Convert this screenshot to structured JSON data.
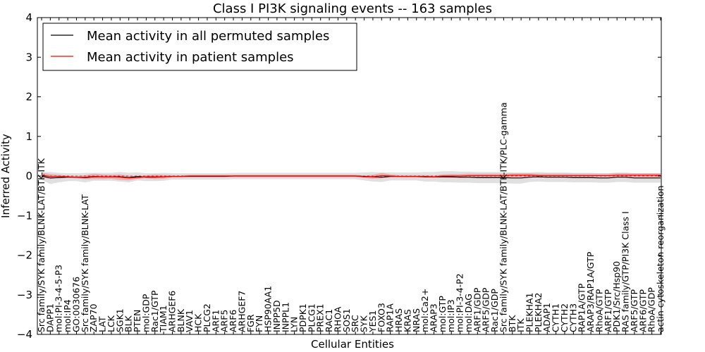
{
  "chart_data": {
    "type": "line",
    "title": "Class I PI3K signaling events -- 163 samples",
    "xlabel": "Cellular Entities",
    "ylabel": "Inferred Activity",
    "ylim": [
      -4,
      4
    ],
    "yticks": [
      "−4",
      "−3",
      "−2",
      "−1",
      "0",
      "1",
      "2",
      "3",
      "4"
    ],
    "grid": false,
    "legend_position": "top-left",
    "categories": [
      "Src family/SYK family/BLNK-LAT/BTK-ITK",
      "DAPP1",
      "mol:PI-3-4-5-P3",
      "mol:IP4",
      "GO:0030676",
      "Src family/SYK family/BLNK-LAT",
      "ZAP70",
      "LAT",
      "LCK",
      "SGK1",
      "BLK",
      "PTEN",
      "mol:GDP",
      "Rac1/GTP",
      "TIAM1",
      "ARHGEF6",
      "BLNK",
      "VAV1",
      "HCK",
      "PLCG2",
      "ARF1",
      "ARF5",
      "ARF6",
      "ARHGEF7",
      "FGR",
      "FYN",
      "HSP90AA1",
      "INPP5D",
      "INPPL1",
      "LYN",
      "PDPK1",
      "PLCG1",
      "PREX1",
      "RAC1",
      "RHOA",
      "SOS1",
      "SRC",
      "SYK",
      "YES1",
      "FOXO3",
      "RAP1A",
      "HRAS",
      "KRAS",
      "NRAS",
      "mol:Ca2+",
      "ARAP3",
      "mol:GTP",
      "mol:IP3",
      "mol:PI-3-4-P2",
      "mol:DAG",
      "ARF1/GDP",
      "ARF5/GDP",
      "Rac1/GDP",
      "Src family/SYK family/BLNK-LAT/BTK-ITK/PLC-gamma",
      "BTK",
      "ITK",
      "PLEKHA1",
      "PLEKHA2",
      "ADAP1",
      "CYTH1",
      "CYTH2",
      "CYTH3",
      "RAP1A/GTP",
      "ARAP3/RAP1A/GTP",
      "RhoA/GTP",
      "ARF1/GTP",
      "PDK1/Src/Hsp90",
      "RAS family/GTP/PI3K Class I",
      "ARF5/GTP",
      "ARF6/GTP",
      "RhoA/GDP",
      "actin cytoskeleton reorganization"
    ],
    "series": [
      {
        "name": "Mean activity in all permuted samples",
        "color": "#000000",
        "values": [
          0,
          -0.05,
          -0.04,
          -0.03,
          -0.03,
          -0.04,
          -0.02,
          -0.02,
          -0.02,
          -0.02,
          -0.04,
          -0.01,
          -0.03,
          -0.03,
          -0.02,
          -0.01,
          -0.01,
          -0.01,
          -0.01,
          -0.01,
          -0.01,
          -0.01,
          0,
          0,
          0,
          0,
          0,
          0,
          0,
          0,
          0,
          0,
          0,
          0,
          0,
          0,
          0,
          -0.01,
          -0.02,
          -0.03,
          -0.01,
          -0.01,
          -0.01,
          -0.01,
          -0.02,
          -0.02,
          -0.02,
          -0.02,
          -0.03,
          -0.03,
          -0.04,
          -0.04,
          -0.04,
          -0.04,
          -0.05,
          -0.05,
          -0.03,
          -0.02,
          -0.03,
          -0.03,
          -0.03,
          -0.04,
          -0.04,
          -0.04,
          -0.05,
          -0.05,
          -0.03,
          -0.03,
          -0.05,
          -0.05,
          -0.05,
          -0.05
        ],
        "band": [
          0.1,
          0.15,
          0.12,
          0.1,
          0.1,
          0.12,
          0.1,
          0.1,
          0.1,
          0.12,
          0.12,
          0.1,
          0.1,
          0.1,
          0.1,
          0.08,
          0.08,
          0.08,
          0.08,
          0.08,
          0.08,
          0.08,
          0.08,
          0.08,
          0.08,
          0.08,
          0.08,
          0.08,
          0.08,
          0.08,
          0.08,
          0.08,
          0.08,
          0.08,
          0.08,
          0.08,
          0.08,
          0.1,
          0.12,
          0.12,
          0.1,
          0.1,
          0.1,
          0.1,
          0.12,
          0.12,
          0.14,
          0.14,
          0.14,
          0.14,
          0.14,
          0.14,
          0.14,
          0.14,
          0.14,
          0.14,
          0.12,
          0.12,
          0.12,
          0.12,
          0.12,
          0.12,
          0.12,
          0.12,
          0.12,
          0.12,
          0.12,
          0.12,
          0.12,
          0.12,
          0.12,
          0.12
        ]
      },
      {
        "name": "Mean activity in patient samples",
        "color": "#ff0000",
        "values": [
          0.02,
          -0.01,
          -0.01,
          -0.02,
          -0.03,
          -0.03,
          -0.01,
          -0.02,
          -0.02,
          -0.03,
          -0.05,
          -0.04,
          -0.02,
          -0.02,
          -0.02,
          -0.01,
          -0.01,
          0,
          0,
          0,
          0,
          0,
          0,
          0,
          0,
          0,
          0,
          0,
          0,
          0,
          0,
          0,
          0,
          0,
          0,
          0,
          0,
          -0.02,
          -0.02,
          0.01,
          0,
          -0.01,
          -0.01,
          -0.01,
          -0.01,
          -0.02,
          0,
          0,
          0,
          0.01,
          0.01,
          0.01,
          0.01,
          0.01,
          0.02,
          0.02,
          0.02,
          0.01,
          0.01,
          0.01,
          0.01,
          0.01,
          0.01,
          0.01,
          0.01,
          0.01,
          0.02,
          0.02,
          0.02,
          0.02,
          0.02,
          0.02
        ],
        "band": [
          0.07,
          0.06,
          0.04,
          0.03,
          0.03,
          0.05,
          0.07,
          0.06,
          0.05,
          0.07,
          0.06,
          0.03,
          0.04,
          0.06,
          0.05,
          0.03,
          0.03,
          0.03,
          0.03,
          0.03,
          0.03,
          0.03,
          0.03,
          0.03,
          0.03,
          0.03,
          0.03,
          0.03,
          0.03,
          0.03,
          0.03,
          0.03,
          0.03,
          0.03,
          0.03,
          0.03,
          0.03,
          0.03,
          0.05,
          0.07,
          0.04,
          0.03,
          0.03,
          0.03,
          0.03,
          0.03,
          0.04,
          0.05,
          0.05,
          0.05,
          0.05,
          0.05,
          0.05,
          0.05,
          0.05,
          0.05,
          0.05,
          0.05,
          0.05,
          0.05,
          0.05,
          0.05,
          0.05,
          0.05,
          0.05,
          0.05,
          0.05,
          0.05,
          0.05,
          0.05,
          0.05,
          0.05
        ]
      }
    ],
    "colors": {
      "permuted_band": "#bbbbbb",
      "patient_band": "#f08080",
      "zero_line": "#ff0000"
    }
  }
}
